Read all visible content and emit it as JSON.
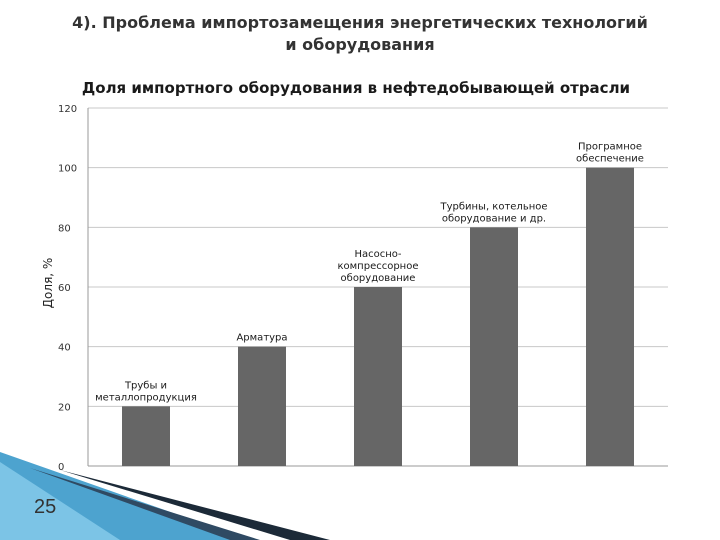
{
  "slide": {
    "title_line1": "4). Проблема импортозамещения энергетических технологий",
    "title_line2": "и оборудования",
    "page_number": "25"
  },
  "colors": {
    "bar": "#666666",
    "gridline": "#c8c8c8",
    "axis": "#999999",
    "decor_blue": "#4da3cf",
    "decor_dark": "#1c2a38"
  },
  "chart_data": {
    "type": "bar",
    "title": "Доля импортного оборудования в нефтедобывающей отрасли",
    "xlabel": "",
    "ylabel": "Доля, %",
    "ylim": [
      0,
      120
    ],
    "yticks": [
      0,
      20,
      40,
      60,
      80,
      100,
      120
    ],
    "grid": true,
    "legend": "none",
    "categories": [
      "Трубы и металлопродукция",
      "Арматура",
      "Насосно-компрессорное оборудование",
      "Турбины, котельное оборудование и др.",
      "Програмное обеспечение"
    ],
    "category_label_lines": [
      [
        "Трубы и",
        "металлопродукция"
      ],
      [
        "Арматура"
      ],
      [
        "Насосно-",
        "компрессорное",
        "оборудование"
      ],
      [
        "Турбины, котельное",
        "оборудование и др."
      ],
      [
        "Програмное",
        "обеспечение"
      ]
    ],
    "values": [
      20,
      40,
      60,
      80,
      100
    ]
  }
}
